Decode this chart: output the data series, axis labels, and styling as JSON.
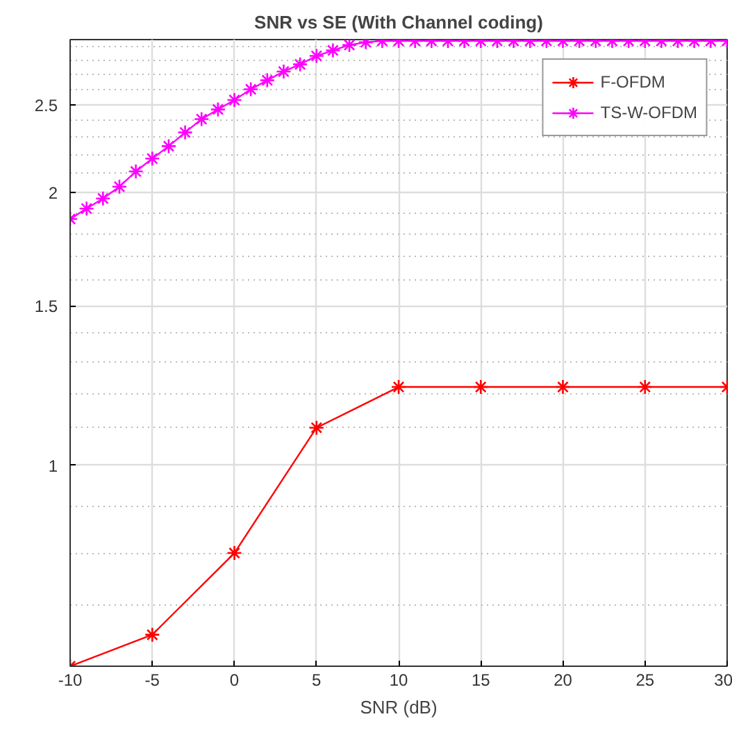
{
  "chart_data": {
    "type": "line",
    "title": "SNR vs SE (With Channel coding)",
    "xlabel": "SNR (dB)",
    "series": [
      {
        "name": "F-OFDM",
        "color": "#ff0000",
        "x": [
          -10,
          -5,
          0,
          5,
          10,
          15,
          20,
          25,
          30
        ],
        "values": [
          0.6,
          0.65,
          0.8,
          1.1,
          1.22,
          1.22,
          1.22,
          1.22,
          1.22
        ]
      },
      {
        "name": "TS-W-OFDM",
        "color": "#ff00ff",
        "x": [
          -10,
          -9,
          -8,
          -7,
          -6,
          -5,
          -4,
          -3,
          -2,
          -1,
          0,
          1,
          2,
          3,
          4,
          5,
          6,
          7,
          8,
          9,
          10,
          11,
          12,
          13,
          14,
          15,
          16,
          17,
          18,
          19,
          20,
          21,
          22,
          23,
          24,
          25,
          26,
          27,
          28,
          29,
          30
        ],
        "values": [
          1.87,
          1.92,
          1.97,
          2.03,
          2.11,
          2.18,
          2.25,
          2.33,
          2.41,
          2.47,
          2.53,
          2.6,
          2.66,
          2.72,
          2.77,
          2.83,
          2.87,
          2.91,
          2.93,
          2.94,
          2.94,
          2.94,
          2.94,
          2.94,
          2.94,
          2.94,
          2.94,
          2.94,
          2.94,
          2.94,
          2.94,
          2.94,
          2.94,
          2.94,
          2.94,
          2.94,
          2.94,
          2.94,
          2.94,
          2.94,
          2.94
        ]
      }
    ],
    "xlim": [
      -10,
      30
    ],
    "xticks": [
      -10,
      -5,
      0,
      5,
      10,
      15,
      20,
      25,
      30
    ],
    "ylim": [
      0.6,
      2.95
    ],
    "yticks": [
      {
        "value": 0.7,
        "label": null
      },
      {
        "value": 0.8,
        "label": null
      },
      {
        "value": 0.9,
        "label": null
      },
      1,
      {
        "value": 1.1,
        "label": null
      },
      {
        "value": 1.2,
        "label": null
      },
      {
        "value": 1.3,
        "label": null
      },
      {
        "value": 1.4,
        "label": null
      },
      1.5,
      {
        "value": 1.6,
        "label": null
      },
      {
        "value": 1.7,
        "label": null
      },
      {
        "value": 1.8,
        "label": null
      },
      {
        "value": 1.9,
        "label": null
      },
      2,
      {
        "value": 2.1,
        "label": null
      },
      {
        "value": 2.2,
        "label": null
      },
      {
        "value": 2.3,
        "label": null
      },
      {
        "value": 2.4,
        "label": null
      },
      2.5,
      {
        "value": 2.6,
        "label": null
      },
      {
        "value": 2.7,
        "label": null
      },
      {
        "value": 2.8,
        "label": null
      },
      {
        "value": 2.9,
        "label": null
      }
    ],
    "log": "y",
    "grid": true,
    "legend": "top right",
    "marker": "cross",
    "line_style": "solid"
  }
}
